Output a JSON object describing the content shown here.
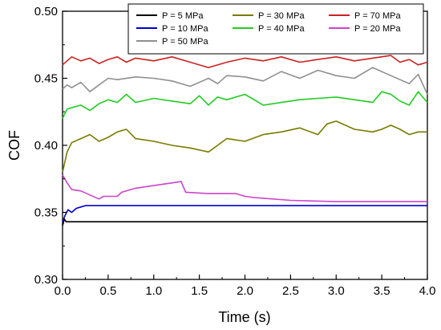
{
  "chart_data": {
    "type": "line",
    "title": "",
    "xlabel": "Time (s)",
    "ylabel": "COF",
    "xlim": [
      0.0,
      4.0
    ],
    "ylim": [
      0.3,
      0.5
    ],
    "xticks": [
      "0.0",
      "0.5",
      "1.0",
      "1.5",
      "2.0",
      "2.5",
      "3.0",
      "3.5",
      "4.0"
    ],
    "yticks": [
      "0.30",
      "0.35",
      "0.40",
      "0.45",
      "0.50"
    ],
    "grid": false,
    "legend_position": "top-right",
    "series": [
      {
        "name": "P = 5 MPa",
        "color": "#000000",
        "x": [
          0.0,
          0.02,
          0.04,
          0.5,
          1.0,
          2.0,
          3.0,
          4.0
        ],
        "y": [
          0.34,
          0.345,
          0.343,
          0.343,
          0.343,
          0.343,
          0.343,
          0.343
        ]
      },
      {
        "name": "P = 10 MPa",
        "color": "#0000cc",
        "x": [
          0.0,
          0.03,
          0.06,
          0.1,
          0.15,
          0.2,
          0.25,
          0.5,
          1.0,
          2.0,
          3.0,
          4.0
        ],
        "y": [
          0.343,
          0.348,
          0.352,
          0.35,
          0.353,
          0.354,
          0.355,
          0.355,
          0.355,
          0.355,
          0.355,
          0.355
        ]
      },
      {
        "name": "P = 20 MPa",
        "color": "#cc44cc",
        "x": [
          0.0,
          0.05,
          0.1,
          0.2,
          0.3,
          0.4,
          0.45,
          0.6,
          0.65,
          0.8,
          1.0,
          1.2,
          1.3,
          1.35,
          1.6,
          1.9,
          2.0,
          2.1,
          2.5,
          3.0,
          3.5,
          4.0
        ],
        "y": [
          0.378,
          0.372,
          0.367,
          0.366,
          0.363,
          0.36,
          0.362,
          0.362,
          0.365,
          0.368,
          0.37,
          0.372,
          0.373,
          0.365,
          0.364,
          0.364,
          0.362,
          0.361,
          0.359,
          0.358,
          0.358,
          0.358
        ]
      },
      {
        "name": "P = 30 MPa",
        "color": "#7a7a00",
        "x": [
          0.0,
          0.05,
          0.1,
          0.2,
          0.3,
          0.4,
          0.5,
          0.6,
          0.7,
          0.8,
          1.0,
          1.2,
          1.4,
          1.6,
          1.7,
          1.8,
          2.0,
          2.2,
          2.4,
          2.6,
          2.8,
          2.9,
          3.0,
          3.2,
          3.4,
          3.5,
          3.6,
          3.7,
          3.8,
          3.9,
          4.0
        ],
        "y": [
          0.38,
          0.395,
          0.402,
          0.405,
          0.408,
          0.403,
          0.406,
          0.41,
          0.412,
          0.405,
          0.403,
          0.4,
          0.398,
          0.395,
          0.4,
          0.405,
          0.403,
          0.408,
          0.41,
          0.413,
          0.408,
          0.416,
          0.418,
          0.412,
          0.41,
          0.412,
          0.415,
          0.412,
          0.408,
          0.41,
          0.41
        ]
      },
      {
        "name": "P = 40 MPa",
        "color": "#22cc22",
        "x": [
          0.0,
          0.05,
          0.1,
          0.2,
          0.3,
          0.4,
          0.5,
          0.6,
          0.7,
          0.8,
          1.0,
          1.2,
          1.4,
          1.5,
          1.6,
          1.7,
          1.8,
          2.0,
          2.2,
          2.4,
          2.6,
          2.8,
          3.0,
          3.2,
          3.4,
          3.5,
          3.6,
          3.7,
          3.8,
          3.9,
          4.0
        ],
        "y": [
          0.42,
          0.427,
          0.428,
          0.43,
          0.426,
          0.431,
          0.434,
          0.432,
          0.438,
          0.432,
          0.435,
          0.433,
          0.431,
          0.437,
          0.43,
          0.436,
          0.434,
          0.438,
          0.43,
          0.432,
          0.434,
          0.435,
          0.436,
          0.434,
          0.432,
          0.44,
          0.438,
          0.433,
          0.43,
          0.44,
          0.432
        ]
      },
      {
        "name": "P = 50 MPa",
        "color": "#909090",
        "x": [
          0.0,
          0.05,
          0.1,
          0.2,
          0.3,
          0.4,
          0.5,
          0.6,
          0.8,
          1.0,
          1.2,
          1.4,
          1.6,
          1.7,
          1.8,
          2.0,
          2.2,
          2.4,
          2.6,
          2.8,
          3.0,
          3.2,
          3.4,
          3.6,
          3.8,
          3.9,
          4.0
        ],
        "y": [
          0.442,
          0.445,
          0.443,
          0.447,
          0.44,
          0.445,
          0.45,
          0.449,
          0.451,
          0.45,
          0.448,
          0.444,
          0.45,
          0.446,
          0.452,
          0.451,
          0.448,
          0.455,
          0.45,
          0.456,
          0.452,
          0.45,
          0.458,
          0.452,
          0.446,
          0.453,
          0.438
        ]
      },
      {
        "name": "P = 70 MPa",
        "color": "#cc2222",
        "x": [
          0.0,
          0.05,
          0.1,
          0.2,
          0.3,
          0.4,
          0.5,
          0.6,
          0.7,
          0.8,
          1.0,
          1.2,
          1.4,
          1.6,
          1.8,
          2.0,
          2.2,
          2.4,
          2.6,
          2.8,
          3.0,
          3.2,
          3.4,
          3.6,
          3.7,
          3.8,
          3.9,
          4.0
        ],
        "y": [
          0.46,
          0.463,
          0.466,
          0.463,
          0.465,
          0.461,
          0.464,
          0.466,
          0.462,
          0.465,
          0.463,
          0.466,
          0.462,
          0.458,
          0.462,
          0.465,
          0.463,
          0.466,
          0.462,
          0.464,
          0.466,
          0.463,
          0.465,
          0.467,
          0.462,
          0.464,
          0.46,
          0.462
        ]
      }
    ],
    "legend_order": [
      "P = 5 MPa",
      "P = 30 MPa",
      "P = 70 MPa",
      "P = 10 MPa",
      "P = 40 MPa",
      "P = 20 MPa",
      "P = 50 MPa"
    ]
  }
}
